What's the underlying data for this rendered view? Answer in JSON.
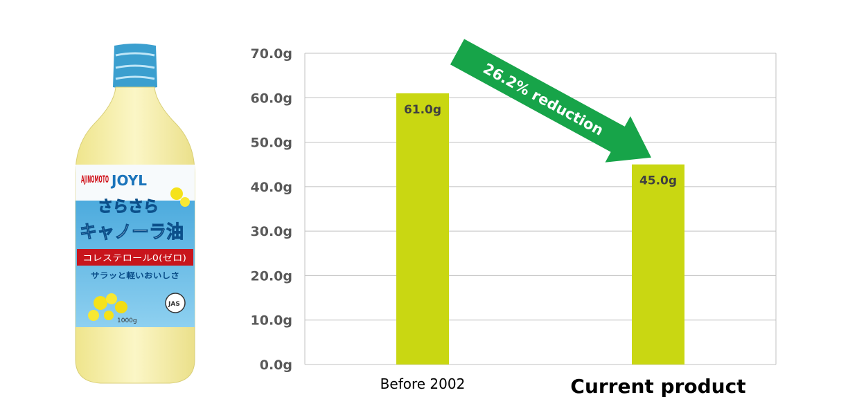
{
  "product_image": {
    "brand": "AJINOMOTO",
    "sub_brand": "JOYL",
    "name_line1": "さらさら",
    "name_line2": "キャノーラ油",
    "ribbon_text": "コレステロール0(ゼロ)",
    "tagline": "サラッと軽いおいしさ",
    "badge": "JAS",
    "volume": "1000g"
  },
  "chart_data": {
    "type": "bar",
    "categories": [
      "Before 2002",
      "Current product"
    ],
    "values": [
      61.0,
      45.0
    ],
    "value_labels": [
      "61.0g",
      "45.0g"
    ],
    "yticks": [
      "0.0g",
      "10.0g",
      "20.0g",
      "30.0g",
      "40.0g",
      "50.0g",
      "60.0g",
      "70.0g"
    ],
    "ylim": [
      0,
      70
    ],
    "grid": true,
    "bar_color": "#c9d712",
    "annotation": "26.2% reduction",
    "annotation_color": "#17a449",
    "axis_color": "#c0c0c0"
  }
}
